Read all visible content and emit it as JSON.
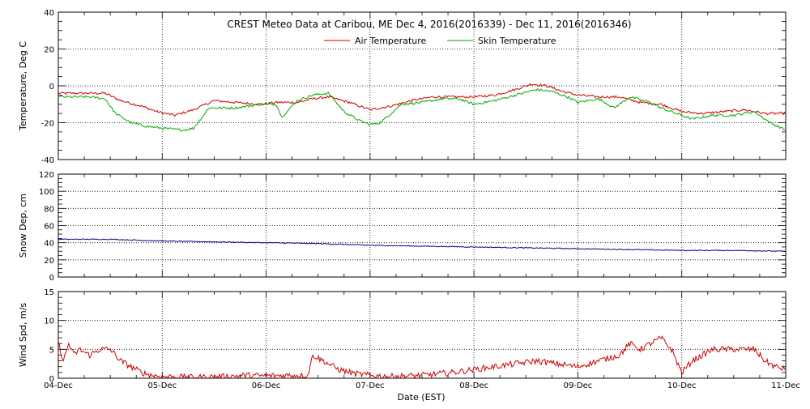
{
  "title": "CREST Meteo Data at Caribou, ME   Dec  4, 2016(2016339) - Dec 11, 2016(2016346)",
  "colors": {
    "air": "#cc0000",
    "skin": "#00aa00",
    "snow": "#000088",
    "wind": "#cc0000",
    "grid": "#000000"
  },
  "chart_data": [
    {
      "type": "line",
      "ylabel": "Temperature, Deg C",
      "xlabel": "",
      "ylim": [
        -40,
        40
      ],
      "yticks": [
        "-40",
        "-20",
        "0",
        "20",
        "40"
      ],
      "grid": true,
      "legend": "top-center",
      "series": [
        {
          "name": "Air Temperature",
          "color_key": "air",
          "x": [
            0,
            0.25,
            0.45,
            0.6,
            0.8,
            0.95,
            1.12,
            1.3,
            1.5,
            1.7,
            1.95,
            2.1,
            2.3,
            2.45,
            2.6,
            2.8,
            3.0,
            3.2,
            3.4,
            3.6,
            3.8,
            4.0,
            4.2,
            4.4,
            4.55,
            4.7,
            4.85,
            5.0,
            5.2,
            5.4,
            5.6,
            5.8,
            6.0,
            6.2,
            6.4,
            6.6,
            6.8,
            7.0
          ],
          "y": [
            -4,
            -4,
            -4,
            -8,
            -11,
            -14,
            -16,
            -13,
            -8,
            -9,
            -10,
            -9,
            -9,
            -7,
            -6,
            -9,
            -13,
            -11,
            -8,
            -6,
            -6,
            -6,
            -5,
            -2,
            1,
            0,
            -3,
            -5,
            -6,
            -6,
            -9,
            -10,
            -14,
            -15,
            -14,
            -13,
            -15,
            -15
          ]
        },
        {
          "name": "Skin Temperature",
          "color_key": "skin",
          "x": [
            0,
            0.3,
            0.45,
            0.55,
            0.7,
            0.85,
            1.0,
            1.2,
            1.3,
            1.45,
            1.7,
            1.95,
            2.1,
            2.15,
            2.3,
            2.45,
            2.6,
            2.75,
            2.9,
            3.0,
            3.1,
            3.3,
            3.5,
            3.7,
            3.85,
            4.0,
            4.2,
            4.4,
            4.6,
            4.75,
            4.9,
            5.0,
            5.2,
            5.35,
            5.5,
            5.7,
            5.8,
            5.95,
            6.1,
            6.3,
            6.5,
            6.7,
            6.85,
            7.0
          ],
          "y": [
            -6,
            -6,
            -7,
            -15,
            -20,
            -22,
            -23,
            -24,
            -23,
            -12,
            -12,
            -10,
            -10,
            -17,
            -8,
            -5,
            -4,
            -14,
            -19,
            -21,
            -20,
            -10,
            -9,
            -7,
            -7,
            -10,
            -8,
            -5,
            -2,
            -3,
            -6,
            -9,
            -7,
            -12,
            -6,
            -9,
            -12,
            -15,
            -18,
            -16,
            -16,
            -14,
            -20,
            -24
          ]
        }
      ]
    },
    {
      "type": "line",
      "ylabel": "Snow Dep, cm",
      "xlabel": "",
      "ylim": [
        0,
        120
      ],
      "yticks": [
        "0",
        "20",
        "40",
        "60",
        "80",
        "100",
        "120"
      ],
      "grid": true,
      "series": [
        {
          "color_key": "snow",
          "x": [
            0,
            0.5,
            1.0,
            1.5,
            2.0,
            2.5,
            3.0,
            3.5,
            4.0,
            4.5,
            5.0,
            5.5,
            6.0,
            6.5,
            7.0
          ],
          "y": [
            44,
            44,
            42,
            41,
            40,
            39,
            37,
            36,
            35,
            34,
            33,
            32,
            31,
            31,
            30
          ]
        }
      ]
    },
    {
      "type": "line",
      "ylabel": "Wind Spd, m/s",
      "xlabel": "Date (EST)",
      "ylim": [
        0,
        15
      ],
      "yticks": [
        "0",
        "5",
        "10",
        "15"
      ],
      "grid": true,
      "series": [
        {
          "color_key": "wind",
          "x": [
            0,
            0.05,
            0.1,
            0.15,
            0.2,
            0.3,
            0.4,
            0.5,
            0.6,
            0.7,
            0.8,
            0.9,
            1.0,
            1.2,
            1.4,
            1.6,
            1.8,
            2.0,
            2.2,
            2.4,
            2.45,
            2.55,
            2.7,
            2.85,
            3.0,
            3.2,
            3.5,
            3.8,
            4.0,
            4.2,
            4.4,
            4.6,
            4.8,
            5.0,
            5.2,
            5.4,
            5.5,
            5.6,
            5.7,
            5.8,
            5.9,
            6.0,
            6.1,
            6.3,
            6.5,
            6.7,
            6.8,
            6.9,
            7.0
          ],
          "y": [
            6,
            3,
            6,
            4,
            5,
            4,
            5,
            5,
            3,
            2,
            1,
            0.5,
            0.3,
            0.2,
            0.2,
            0.3,
            0.5,
            0.4,
            0.5,
            0.5,
            4,
            3,
            1.5,
            0.8,
            0.5,
            0.3,
            0.5,
            1.0,
            1.5,
            2.0,
            2.5,
            3.0,
            2.5,
            2.0,
            3.0,
            4.0,
            6.0,
            5.0,
            6.0,
            7.0,
            5.0,
            1.0,
            3.0,
            5.0,
            5.0,
            5.0,
            3.0,
            2.0,
            1.5
          ]
        }
      ]
    }
  ],
  "x_axis": {
    "min": 0,
    "max": 7,
    "tick_values": [
      0,
      1,
      2,
      3,
      4,
      5,
      6,
      7
    ],
    "tick_labels": [
      "04-Dec",
      "05-Dec",
      "06-Dec",
      "07-Dec",
      "08-Dec",
      "09-Dec",
      "10-Dec",
      "11-Dec"
    ]
  }
}
